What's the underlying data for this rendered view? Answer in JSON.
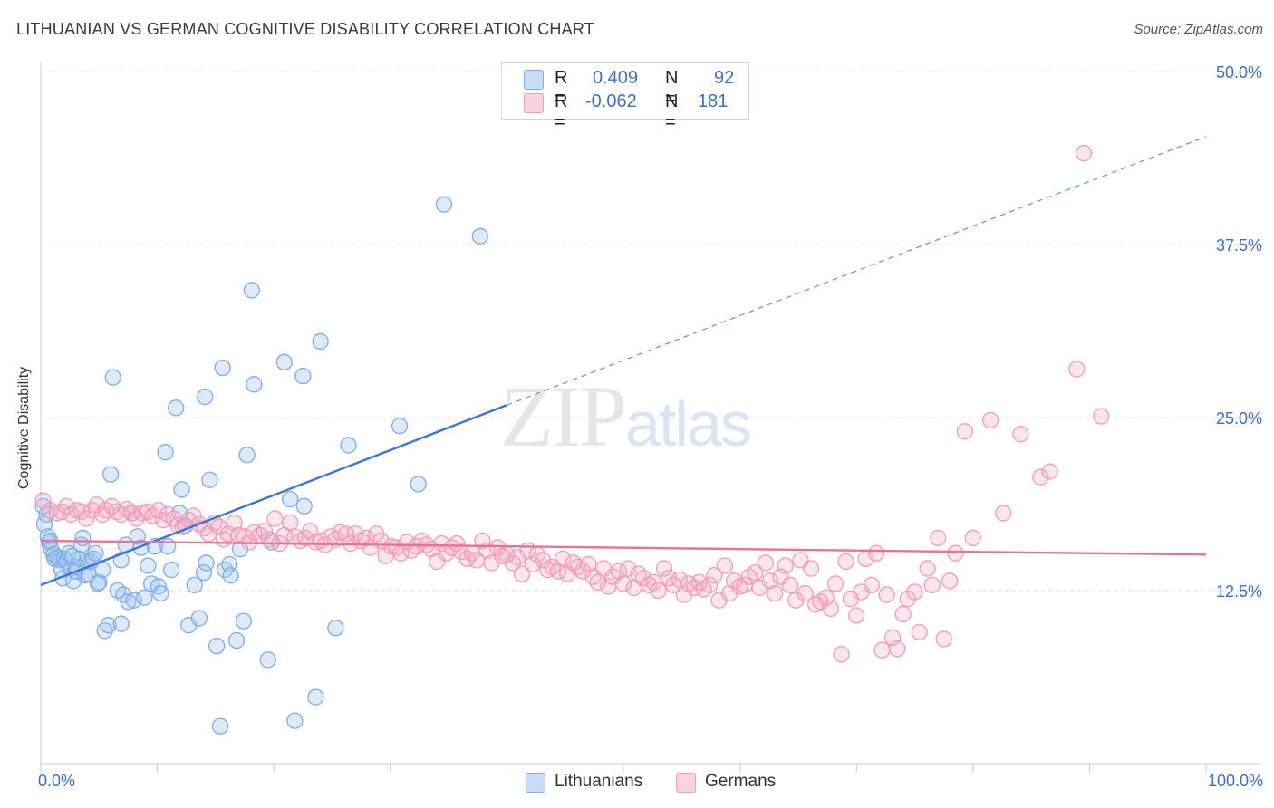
{
  "header": {
    "title": "LITHUANIAN VS GERMAN COGNITIVE DISABILITY CORRELATION CHART",
    "source": "Source: ZipAtlas.com"
  },
  "watermark": {
    "zip": "ZIP",
    "atlas": "atlas"
  },
  "legend_top": {
    "rows": [
      {
        "r_label": "R =",
        "r_value": "0.409",
        "n_label": "N =",
        "n_value": "92",
        "color": "#7aaee8",
        "fill": "#c8dcf6"
      },
      {
        "r_label": "R =",
        "r_value": "-0.062",
        "n_label": "N =",
        "n_value": "181",
        "color": "#f29bb7",
        "fill": "#fbd3df"
      }
    ]
  },
  "legend_bottom": {
    "items": [
      {
        "label": "Lithuanians",
        "color": "#7aaee8",
        "fill": "#c8dcf6"
      },
      {
        "label": "Germans",
        "color": "#f29bb7",
        "fill": "#fbd3df"
      }
    ]
  },
  "chart_data": {
    "type": "scatter",
    "ylabel": "Cognitive Disability",
    "x_tick_labels": {
      "min": "0.0%",
      "max": "100.0%"
    },
    "y_tick_labels": [
      "12.5%",
      "25.0%",
      "37.5%",
      "50.0%"
    ],
    "y_ticks": [
      12.5,
      25.0,
      37.5,
      50.0
    ],
    "xlim": [
      0,
      100
    ],
    "ylim": [
      0,
      50
    ],
    "grid": "horizontal dashed",
    "legend_placement": "top-center and bottom",
    "series": [
      {
        "name": "Lithuanians",
        "color": "#3a76d4",
        "fill": "rgba(160,196,240,0.35)",
        "stroke": "#7aaee8",
        "trend": {
          "x0": 0,
          "y0": 12.9,
          "x1": 40,
          "y1": 25.9,
          "dashed_to_x": 100,
          "dashed_to_y": 45.3
        },
        "points": [
          [
            0.3,
            17.3
          ],
          [
            0.5,
            18.0
          ],
          [
            0.6,
            16.4
          ],
          [
            0.7,
            16.0
          ],
          [
            0.8,
            16.1
          ],
          [
            0.9,
            15.5
          ],
          [
            1.1,
            15.1
          ],
          [
            1.2,
            14.8
          ],
          [
            1.4,
            14.9
          ],
          [
            1.6,
            14.7
          ],
          [
            1.8,
            14.0
          ],
          [
            1.9,
            13.4
          ],
          [
            2.0,
            14.8
          ],
          [
            2.2,
            14.6
          ],
          [
            2.4,
            15.2
          ],
          [
            2.6,
            14.1
          ],
          [
            2.8,
            13.2
          ],
          [
            3.0,
            13.9
          ],
          [
            3.1,
            14.2
          ],
          [
            3.3,
            14.8
          ],
          [
            3.5,
            15.8
          ],
          [
            3.6,
            16.3
          ],
          [
            3.8,
            13.6
          ],
          [
            4.0,
            14.6
          ],
          [
            4.1,
            13.7
          ],
          [
            4.3,
            14.6
          ],
          [
            4.5,
            14.8
          ],
          [
            4.7,
            15.2
          ],
          [
            4.9,
            13.0
          ],
          [
            5.0,
            13.1
          ],
          [
            5.3,
            14.0
          ],
          [
            5.5,
            9.6
          ],
          [
            5.8,
            10.0
          ],
          [
            6.0,
            20.9
          ],
          [
            6.2,
            27.9
          ],
          [
            6.6,
            12.5
          ],
          [
            6.9,
            10.1
          ],
          [
            7.1,
            12.2
          ],
          [
            7.3,
            15.8
          ],
          [
            7.5,
            11.7
          ],
          [
            7.8,
            18.1
          ],
          [
            8.0,
            11.8
          ],
          [
            8.3,
            16.4
          ],
          [
            8.6,
            15.6
          ],
          [
            8.9,
            12.0
          ],
          [
            9.2,
            14.3
          ],
          [
            9.5,
            13.0
          ],
          [
            9.8,
            15.7
          ],
          [
            10.1,
            12.8
          ],
          [
            10.3,
            12.3
          ],
          [
            10.7,
            22.5
          ],
          [
            10.9,
            15.7
          ],
          [
            11.2,
            14.0
          ],
          [
            11.6,
            25.7
          ],
          [
            11.9,
            18.1
          ],
          [
            12.1,
            19.8
          ],
          [
            12.4,
            17.2
          ],
          [
            12.7,
            10.0
          ],
          [
            13.2,
            12.9
          ],
          [
            13.6,
            10.5
          ],
          [
            14.0,
            13.8
          ],
          [
            14.2,
            14.5
          ],
          [
            14.5,
            20.5
          ],
          [
            14.1,
            26.5
          ],
          [
            15.1,
            8.5
          ],
          [
            15.4,
            2.7
          ],
          [
            15.8,
            14.0
          ],
          [
            15.6,
            28.6
          ],
          [
            16.2,
            14.4
          ],
          [
            16.3,
            13.6
          ],
          [
            16.8,
            8.9
          ],
          [
            17.1,
            15.5
          ],
          [
            17.4,
            10.3
          ],
          [
            17.7,
            22.3
          ],
          [
            18.1,
            34.2
          ],
          [
            18.3,
            27.4
          ],
          [
            19.8,
            16.0
          ],
          [
            19.5,
            7.5
          ],
          [
            20.9,
            29.0
          ],
          [
            21.4,
            19.1
          ],
          [
            21.8,
            3.1
          ],
          [
            22.6,
            18.6
          ],
          [
            22.5,
            28.0
          ],
          [
            23.6,
            4.8
          ],
          [
            24.0,
            30.5
          ],
          [
            25.3,
            9.8
          ],
          [
            26.4,
            23.0
          ],
          [
            30.8,
            24.4
          ],
          [
            32.4,
            20.2
          ],
          [
            34.6,
            40.4
          ],
          [
            37.7,
            38.1
          ],
          [
            2.7,
            15.0
          ],
          [
            6.9,
            14.7
          ],
          [
            0.2,
            18.6
          ]
        ]
      },
      {
        "name": "Germans",
        "color": "#e8739a",
        "fill": "rgba(245,170,196,0.30)",
        "stroke": "#f29bb7",
        "trend": {
          "x0": 0,
          "y0": 16.1,
          "x1": 100,
          "y1": 15.1
        },
        "points": [
          [
            0.2,
            19.0
          ],
          [
            0.8,
            18.3
          ],
          [
            1.4,
            18.1
          ],
          [
            1.8,
            18.2
          ],
          [
            2.2,
            18.6
          ],
          [
            2.6,
            18.0
          ],
          [
            3.1,
            18.3
          ],
          [
            3.5,
            18.2
          ],
          [
            3.9,
            17.7
          ],
          [
            4.4,
            18.3
          ],
          [
            4.8,
            18.7
          ],
          [
            5.3,
            18.0
          ],
          [
            5.6,
            18.3
          ],
          [
            6.1,
            18.6
          ],
          [
            6.5,
            18.2
          ],
          [
            6.9,
            18.0
          ],
          [
            7.4,
            18.4
          ],
          [
            7.8,
            18.1
          ],
          [
            8.2,
            17.7
          ],
          [
            8.7,
            18.1
          ],
          [
            9.2,
            18.2
          ],
          [
            9.6,
            17.9
          ],
          [
            10.1,
            18.3
          ],
          [
            10.5,
            17.6
          ],
          [
            10.9,
            18.0
          ],
          [
            11.4,
            17.7
          ],
          [
            11.8,
            17.2
          ],
          [
            12.2,
            17.1
          ],
          [
            12.7,
            17.6
          ],
          [
            13.1,
            17.9
          ],
          [
            13.6,
            17.3
          ],
          [
            14.0,
            17.0
          ],
          [
            14.4,
            16.6
          ],
          [
            14.9,
            17.4
          ],
          [
            15.3,
            17.1
          ],
          [
            15.7,
            16.2
          ],
          [
            16.1,
            16.6
          ],
          [
            16.6,
            17.4
          ],
          [
            17.0,
            16.5
          ],
          [
            17.5,
            16.4
          ],
          [
            17.9,
            16.0
          ],
          [
            18.3,
            16.7
          ],
          [
            18.8,
            16.5
          ],
          [
            19.2,
            16.8
          ],
          [
            19.6,
            16.2
          ],
          [
            20.1,
            17.7
          ],
          [
            20.5,
            15.9
          ],
          [
            20.9,
            16.5
          ],
          [
            21.4,
            17.4
          ],
          [
            21.8,
            16.4
          ],
          [
            22.3,
            16.1
          ],
          [
            22.7,
            16.3
          ],
          [
            23.1,
            16.8
          ],
          [
            23.6,
            16.0
          ],
          [
            24.0,
            16.1
          ],
          [
            24.4,
            15.8
          ],
          [
            24.9,
            16.4
          ],
          [
            25.3,
            16.2
          ],
          [
            25.7,
            16.7
          ],
          [
            26.2,
            16.6
          ],
          [
            26.6,
            15.9
          ],
          [
            27.0,
            16.6
          ],
          [
            27.5,
            16.1
          ],
          [
            27.9,
            16.3
          ],
          [
            28.3,
            15.6
          ],
          [
            28.8,
            16.6
          ],
          [
            29.2,
            16.1
          ],
          [
            29.6,
            15.0
          ],
          [
            30.1,
            15.7
          ],
          [
            30.5,
            15.6
          ],
          [
            30.9,
            15.2
          ],
          [
            31.4,
            16.0
          ],
          [
            31.8,
            15.4
          ],
          [
            32.2,
            15.7
          ],
          [
            32.7,
            16.1
          ],
          [
            33.1,
            15.8
          ],
          [
            33.5,
            15.5
          ],
          [
            34.0,
            14.6
          ],
          [
            34.4,
            15.9
          ],
          [
            34.8,
            15.2
          ],
          [
            35.3,
            15.6
          ],
          [
            35.7,
            15.9
          ],
          [
            36.1,
            15.3
          ],
          [
            36.6,
            14.8
          ],
          [
            37.0,
            15.2
          ],
          [
            37.4,
            14.7
          ],
          [
            37.9,
            16.1
          ],
          [
            38.3,
            15.4
          ],
          [
            38.7,
            14.5
          ],
          [
            39.2,
            15.6
          ],
          [
            39.6,
            15.0
          ],
          [
            40.0,
            15.1
          ],
          [
            40.5,
            14.5
          ],
          [
            40.9,
            14.9
          ],
          [
            41.3,
            13.7
          ],
          [
            41.8,
            15.4
          ],
          [
            42.2,
            14.4
          ],
          [
            42.6,
            15.1
          ],
          [
            43.1,
            14.7
          ],
          [
            43.5,
            14.0
          ],
          [
            43.9,
            14.2
          ],
          [
            44.4,
            13.9
          ],
          [
            44.8,
            14.8
          ],
          [
            45.2,
            13.7
          ],
          [
            45.7,
            14.5
          ],
          [
            46.1,
            14.2
          ],
          [
            46.5,
            13.9
          ],
          [
            47.0,
            14.4
          ],
          [
            47.4,
            13.5
          ],
          [
            47.8,
            13.1
          ],
          [
            48.3,
            14.1
          ],
          [
            48.7,
            12.8
          ],
          [
            49.1,
            13.5
          ],
          [
            49.6,
            13.9
          ],
          [
            50.0,
            13.0
          ],
          [
            50.4,
            14.1
          ],
          [
            50.9,
            12.7
          ],
          [
            51.3,
            13.7
          ],
          [
            51.7,
            13.4
          ],
          [
            52.2,
            12.9
          ],
          [
            52.6,
            13.1
          ],
          [
            53.0,
            12.5
          ],
          [
            53.5,
            14.1
          ],
          [
            53.9,
            13.4
          ],
          [
            54.3,
            12.9
          ],
          [
            54.8,
            13.3
          ],
          [
            55.2,
            12.2
          ],
          [
            55.6,
            13.0
          ],
          [
            56.1,
            12.7
          ],
          [
            56.5,
            13.1
          ],
          [
            56.9,
            12.6
          ],
          [
            57.4,
            12.9
          ],
          [
            57.8,
            13.6
          ],
          [
            58.2,
            11.8
          ],
          [
            58.7,
            14.3
          ],
          [
            59.1,
            12.3
          ],
          [
            59.5,
            13.2
          ],
          [
            60.0,
            12.8
          ],
          [
            60.4,
            12.9
          ],
          [
            60.8,
            13.5
          ],
          [
            61.3,
            13.8
          ],
          [
            61.7,
            12.7
          ],
          [
            62.2,
            14.5
          ],
          [
            62.6,
            13.2
          ],
          [
            63.0,
            12.3
          ],
          [
            63.5,
            13.5
          ],
          [
            63.9,
            14.3
          ],
          [
            64.3,
            12.9
          ],
          [
            64.8,
            11.8
          ],
          [
            65.2,
            14.7
          ],
          [
            65.6,
            12.3
          ],
          [
            66.1,
            14.1
          ],
          [
            66.5,
            11.5
          ],
          [
            66.9,
            11.7
          ],
          [
            67.4,
            12.0
          ],
          [
            67.8,
            11.2
          ],
          [
            68.2,
            13.0
          ],
          [
            68.7,
            7.9
          ],
          [
            69.1,
            14.6
          ],
          [
            69.5,
            11.9
          ],
          [
            70.0,
            10.7
          ],
          [
            70.4,
            12.4
          ],
          [
            70.8,
            14.8
          ],
          [
            71.3,
            12.9
          ],
          [
            71.7,
            15.2
          ],
          [
            72.2,
            8.2
          ],
          [
            72.6,
            12.2
          ],
          [
            73.1,
            9.1
          ],
          [
            73.5,
            8.3
          ],
          [
            74.0,
            10.8
          ],
          [
            74.4,
            11.9
          ],
          [
            75.0,
            12.4
          ],
          [
            75.4,
            9.5
          ],
          [
            76.1,
            14.1
          ],
          [
            76.5,
            12.9
          ],
          [
            77.0,
            16.3
          ],
          [
            77.5,
            9.0
          ],
          [
            78.0,
            13.2
          ],
          [
            78.5,
            15.2
          ],
          [
            79.3,
            24.0
          ],
          [
            80.0,
            16.3
          ],
          [
            81.5,
            24.8
          ],
          [
            82.6,
            18.1
          ],
          [
            84.1,
            23.8
          ],
          [
            85.8,
            20.7
          ],
          [
            86.6,
            21.1
          ],
          [
            88.9,
            28.5
          ],
          [
            89.5,
            44.1
          ],
          [
            91.0,
            25.1
          ]
        ]
      }
    ]
  }
}
